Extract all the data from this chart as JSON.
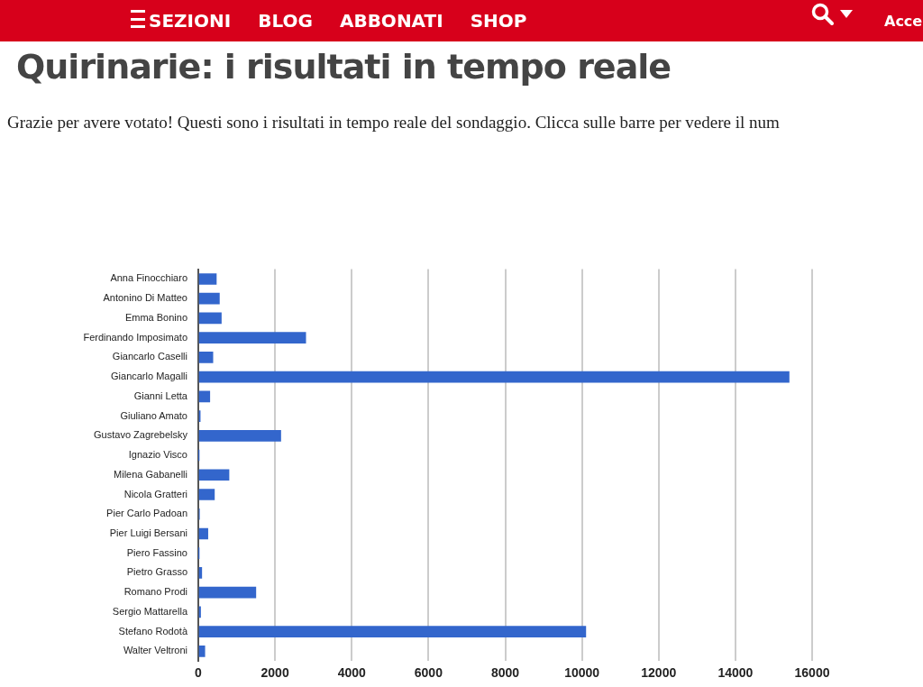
{
  "chart_data": {
    "type": "bar",
    "orientation": "horizontal",
    "title": "Quirinarie: i risultati in tempo reale",
    "subtitle": "Grazie per avere votato! Questi sono i risultati in tempo reale del sondaggio. Clicca sulle barre per vedere il num",
    "annotations": [
      "SEZIONI",
      "BLOG",
      "ABBONATI",
      "SHOP",
      "Acce"
    ],
    "categories": [
      "Anna Finocchiaro",
      "Antonino Di Matteo",
      "Emma Bonino",
      "Ferdinando Imposimato",
      "Giancarlo Caselli",
      "Giancarlo Magalli",
      "Gianni Letta",
      "Giuliano Amato",
      "Gustavo Zagrebelsky",
      "Ignazio Visco",
      "Milena Gabanelli",
      "Nicola Gratteri",
      "Pier Carlo Padoan",
      "Pier Luigi Bersani",
      "Piero Fassino",
      "Pietro Grasso",
      "Romano Prodi",
      "Sergio Mattarella",
      "Stefano Rodotà",
      "Walter Veltroni"
    ],
    "values": [
      470,
      550,
      600,
      2800,
      380,
      15400,
      300,
      50,
      2150,
      10,
      800,
      420,
      30,
      250,
      10,
      90,
      1500,
      60,
      10100,
      170
    ],
    "color": "#3366cc",
    "xlim": [
      0,
      16000
    ],
    "xticks": [
      0,
      2000,
      4000,
      6000,
      8000,
      10000,
      12000,
      14000,
      16000
    ],
    "grid": "x"
  }
}
